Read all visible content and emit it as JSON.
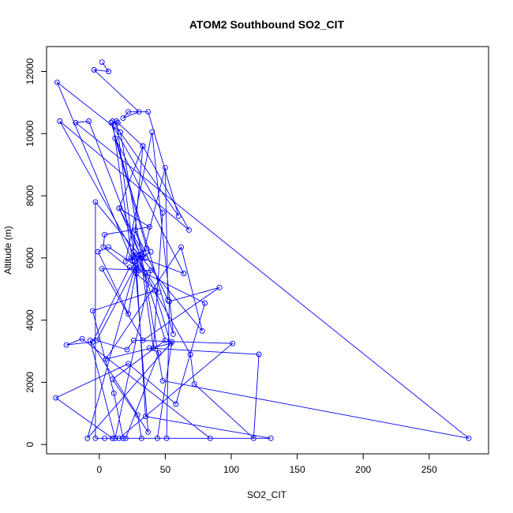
{
  "chart_data": {
    "type": "line",
    "title": "ATOM2 Southbound SO2_CIT",
    "xlabel": "SO2_CIT",
    "ylabel": "Altitude (m)",
    "xlim": [
      -40,
      295
    ],
    "ylim": [
      -300,
      12800
    ],
    "xticks": [
      0,
      50,
      100,
      150,
      200,
      250
    ],
    "yticks": [
      0,
      2000,
      4000,
      6000,
      8000,
      10000,
      12000
    ],
    "markers": "open-circle",
    "grid": false,
    "legend": "none",
    "series": [
      {
        "color": "#0000ff",
        "x": [
          2,
          7,
          -4,
          30,
          18,
          22,
          37,
          60,
          10,
          25,
          33,
          15,
          38,
          4,
          3,
          45,
          26,
          30,
          50,
          52,
          27,
          35,
          15,
          32,
          64,
          12,
          36,
          20,
          40,
          56,
          9,
          48,
          41,
          31,
          -8,
          -18,
          280,
          48,
          16,
          -32,
          24,
          28,
          13,
          14,
          33,
          68,
          -30,
          69,
          72,
          117,
          121,
          38,
          45,
          20,
          4,
          10,
          44,
          55,
          -9,
          27,
          -2,
          21,
          26,
          101,
          15,
          10,
          -33,
          22,
          58,
          80,
          35,
          23,
          -5,
          -25,
          -13,
          84,
          51,
          53,
          91,
          33,
          2,
          39,
          12,
          -7,
          29,
          32,
          -3,
          -3,
          78,
          62,
          5,
          54,
          42,
          -5,
          11,
          18,
          130,
          35,
          28,
          7,
          -1,
          22,
          30,
          50,
          10,
          37,
          27,
          39
        ],
        "y": [
          12300,
          12000,
          12050,
          10700,
          10500,
          10700,
          10700,
          7350,
          10400,
          5900,
          9600,
          7600,
          7000,
          6750,
          6350,
          4900,
          6200,
          5600,
          8900,
          4650,
          6900,
          6000,
          7600,
          6000,
          5500,
          9850,
          6300,
          5900,
          10050,
          3550,
          10350,
          7450,
          3100,
          6100,
          10400,
          10350,
          200,
          2050,
          10050,
          11650,
          6000,
          5500,
          10400,
          10350,
          9600,
          6900,
          10400,
          2900,
          1950,
          200,
          2900,
          3100,
          2950,
          200,
          200,
          200,
          200,
          3300,
          200,
          5700,
          3350,
          3050,
          3350,
          3250,
          200,
          200,
          1500,
          2600,
          1300,
          4550,
          5500,
          5700,
          3300,
          3200,
          3400,
          200,
          200,
          4600,
          5050,
          3350,
          5650,
          5600,
          200,
          3350,
          950,
          200,
          200,
          7800,
          3650,
          6350,
          2750,
          3250,
          4950,
          4300,
          1650,
          200,
          200,
          900,
          5750,
          6350,
          6200,
          4200,
          6100,
          3350,
          2100,
          400,
          5900,
          6200
        ]
      }
    ]
  }
}
